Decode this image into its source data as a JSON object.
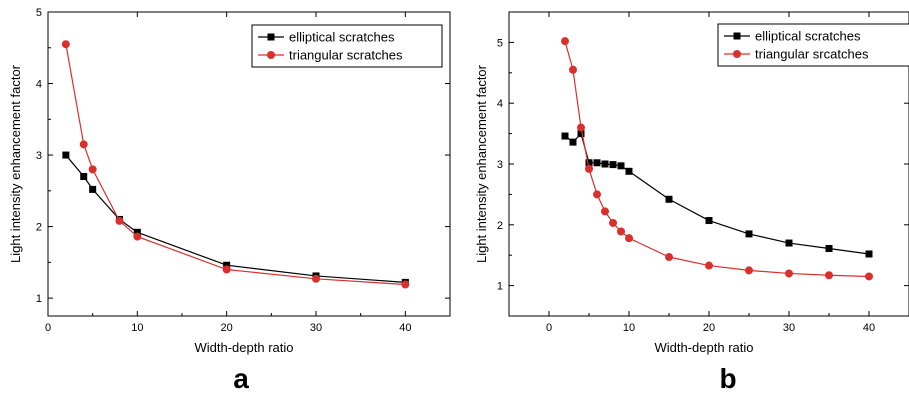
{
  "chart_data": [
    {
      "type": "line",
      "panel_label": "a",
      "xlabel": "Width-depth ratio",
      "ylabel": "Light intensity enhancement factor",
      "xlim": [
        0,
        45
      ],
      "ylim": [
        0.75,
        5
      ],
      "xticks": [
        "0",
        "10",
        "20",
        "30",
        "40"
      ],
      "yticks": [
        "1",
        "2",
        "3",
        "4",
        "5"
      ],
      "grid": false,
      "legend_position": "top-right",
      "series": [
        {
          "name": "elliptical scratches",
          "color": "#000000",
          "marker": "square",
          "x": [
            2,
            4,
            5,
            8,
            10,
            20,
            30,
            40
          ],
          "y": [
            3.0,
            2.7,
            2.52,
            2.1,
            1.92,
            1.46,
            1.31,
            1.22
          ]
        },
        {
          "name": "triangular scratches",
          "color": "#d9302c",
          "marker": "circle",
          "x": [
            2,
            4,
            5,
            8,
            10,
            20,
            30,
            40
          ],
          "y": [
            4.55,
            3.15,
            2.8,
            2.08,
            1.86,
            1.4,
            1.27,
            1.19
          ]
        }
      ]
    },
    {
      "type": "line",
      "panel_label": "b",
      "xlabel": "Width-depth ratio",
      "ylabel": "Light intensity enhancement factor",
      "xlim": [
        -5,
        45
      ],
      "ylim": [
        0.5,
        5.5
      ],
      "xticks": [
        "0",
        "10",
        "20",
        "30",
        "40"
      ],
      "yticks": [
        "1",
        "2",
        "3",
        "4",
        "5"
      ],
      "grid": false,
      "legend_position": "top-right",
      "series": [
        {
          "name": "elliptical scratches",
          "color": "#000000",
          "marker": "square",
          "x": [
            2,
            3,
            4,
            5,
            6,
            7,
            8,
            9,
            10,
            15,
            20,
            25,
            30,
            35,
            40
          ],
          "y": [
            3.46,
            3.36,
            3.5,
            3.02,
            3.02,
            3.0,
            2.99,
            2.97,
            2.88,
            2.42,
            2.07,
            1.85,
            1.7,
            1.61,
            1.52
          ]
        },
        {
          "name": "triangular srcatches",
          "color": "#d9302c",
          "marker": "circle",
          "x": [
            2,
            3,
            4,
            5,
            6,
            7,
            8,
            9,
            10,
            15,
            20,
            25,
            30,
            35,
            40
          ],
          "y": [
            5.02,
            4.55,
            3.6,
            2.92,
            2.5,
            2.22,
            2.03,
            1.89,
            1.78,
            1.47,
            1.33,
            1.25,
            1.2,
            1.17,
            1.15
          ]
        }
      ]
    }
  ]
}
